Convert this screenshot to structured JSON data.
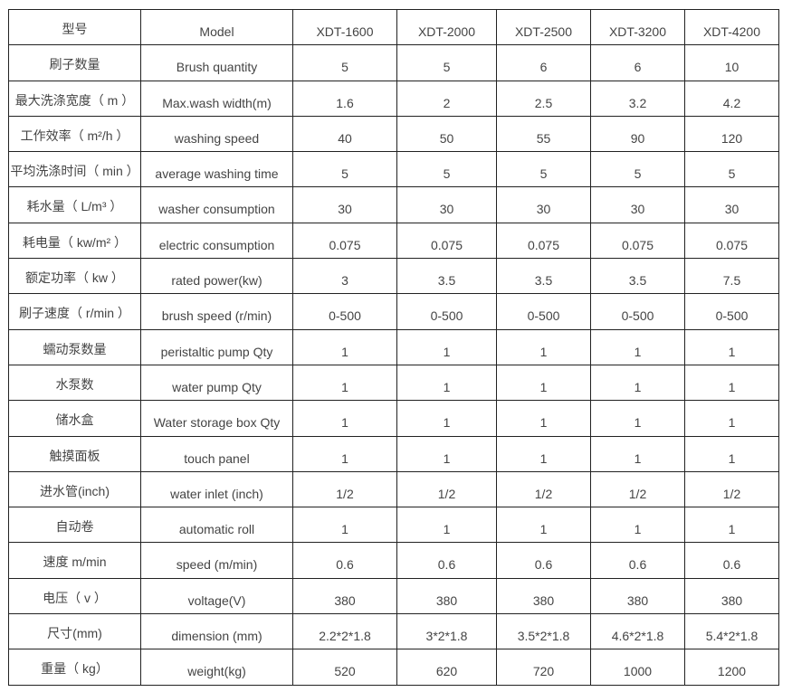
{
  "table": {
    "header": {
      "cn": "型号",
      "en": "Model",
      "models": [
        "XDT-1600",
        "XDT-2000",
        "XDT-2500",
        "XDT-3200",
        "XDT-4200"
      ]
    },
    "rows": [
      {
        "cn": "刷子数量",
        "en": "Brush quantity",
        "values": [
          "5",
          "5",
          "6",
          "6",
          "10"
        ]
      },
      {
        "cn": "最大洗涤宽度（ m ）",
        "en": "Max.wash width(m)",
        "values": [
          "1.6",
          "2",
          "2.5",
          "3.2",
          "4.2"
        ]
      },
      {
        "cn": "工作效率（ m²/h ）",
        "en": "washing speed",
        "values": [
          "40",
          "50",
          "55",
          "90",
          "120"
        ]
      },
      {
        "cn": "平均洗涤时间（ min ）",
        "en": "average washing time",
        "values": [
          "5",
          "5",
          "5",
          "5",
          "5"
        ]
      },
      {
        "cn": "耗水量（ L/m³ ）",
        "en": "washer consumption",
        "values": [
          "30",
          "30",
          "30",
          "30",
          "30"
        ]
      },
      {
        "cn": "耗电量（ kw/m² ）",
        "en": "electric consumption",
        "values": [
          "0.075",
          "0.075",
          "0.075",
          "0.075",
          "0.075"
        ]
      },
      {
        "cn": "额定功率（ kw ）",
        "en": "rated power(kw)",
        "values": [
          "3",
          "3.5",
          "3.5",
          "3.5",
          "7.5"
        ]
      },
      {
        "cn": "刷子速度（ r/min ）",
        "en": "brush speed (r/min)",
        "values": [
          "0-500",
          "0-500",
          "0-500",
          "0-500",
          "0-500"
        ]
      },
      {
        "cn": "蠕动泵数量",
        "en": "peristaltic pump Qty",
        "values": [
          "1",
          "1",
          "1",
          "1",
          "1"
        ]
      },
      {
        "cn": "水泵数",
        "en": "water pump Qty",
        "values": [
          "1",
          "1",
          "1",
          "1",
          "1"
        ]
      },
      {
        "cn": "储水盒",
        "en": "Water storage box Qty",
        "values": [
          "1",
          "1",
          "1",
          "1",
          "1"
        ]
      },
      {
        "cn": "触摸面板",
        "en": "touch panel",
        "values": [
          "1",
          "1",
          "1",
          "1",
          "1"
        ]
      },
      {
        "cn": "进水管(inch)",
        "en": "water inlet (inch)",
        "values": [
          "1/2",
          "1/2",
          "1/2",
          "1/2",
          "1/2"
        ]
      },
      {
        "cn": "自动卷",
        "en": "automatic roll",
        "values": [
          "1",
          "1",
          "1",
          "1",
          "1"
        ]
      },
      {
        "cn": "速度 m/min",
        "en": "speed   (m/min)",
        "values": [
          "0.6",
          "0.6",
          "0.6",
          "0.6",
          "0.6"
        ]
      },
      {
        "cn": "电压（ v ）",
        "en": "voltage(V)",
        "values": [
          "380",
          "380",
          "380",
          "380",
          "380"
        ]
      },
      {
        "cn": "尺寸(mm)",
        "en": "dimension (mm)",
        "values": [
          "2.2*2*1.8",
          "3*2*1.8",
          "3.5*2*1.8",
          "4.6*2*1.8",
          "5.4*2*1.8"
        ]
      },
      {
        "cn": "重量（ kg）",
        "en": "weight(kg)",
        "values": [
          "520",
          "620",
          "720",
          "1000",
          "1200"
        ]
      }
    ]
  }
}
